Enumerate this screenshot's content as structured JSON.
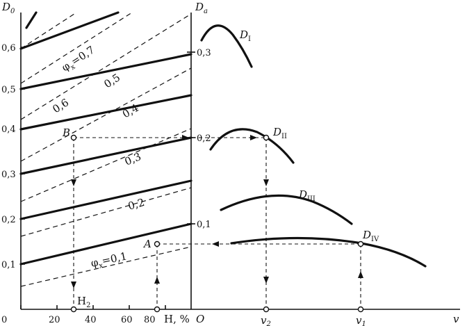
{
  "left_axis": {
    "y_label": "D",
    "y_label_sub": "0",
    "y_ticks": [
      "0,1",
      "0,2",
      "0,3",
      "0,4",
      "0,5",
      "0,6"
    ],
    "x_label": "H, %",
    "x_ticks": [
      "0",
      "20",
      "40",
      "60",
      "80"
    ],
    "x_marker": "H",
    "x_marker_sub": "2"
  },
  "right_axis": {
    "y_label": "D",
    "y_label_sub": "a",
    "y_ticks": [
      "0,1",
      "0,2",
      "0,3"
    ],
    "origin": "O",
    "x_label": "v",
    "x_marks": [
      {
        "text": "v",
        "sub": "2"
      },
      {
        "text": "v",
        "sub": "1"
      }
    ]
  },
  "line_labels": {
    "phi_07": "φ",
    "phi_07_sub": "x",
    "phi_07_val": "=0,7",
    "v06": "0,6",
    "v05": "0,5",
    "v04": "0,4",
    "v03": "0,3",
    "v02": "0,2",
    "phi_01": "φ",
    "phi_01_sub": "x",
    "phi_01_val": "=0,1"
  },
  "curve_labels": {
    "d1": "D",
    "d1_sub": "I",
    "d2": "D",
    "d2_sub": "II",
    "d3": "D",
    "d3_sub": "III",
    "d4": "D",
    "d4_sub": "IV"
  },
  "points": {
    "b": "B",
    "a": "A"
  }
}
